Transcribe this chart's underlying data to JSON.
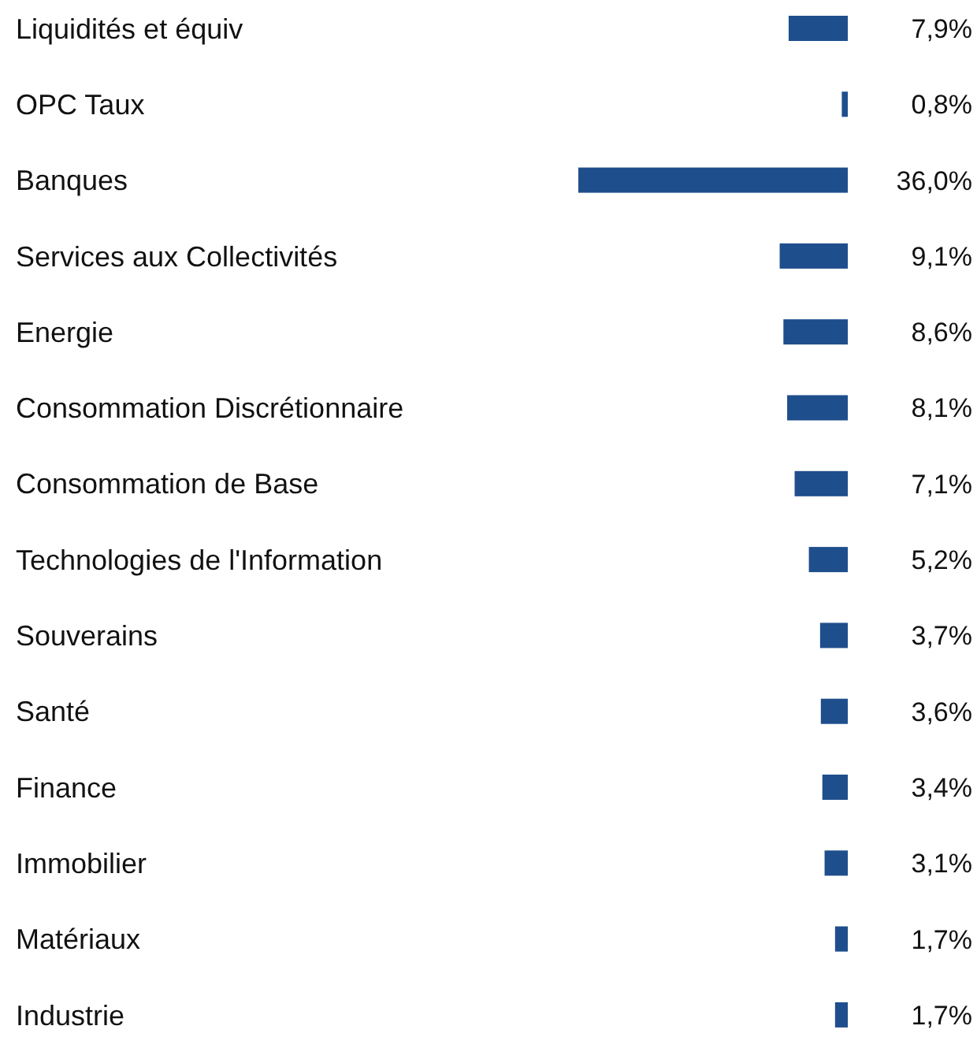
{
  "chart_data": {
    "type": "bar",
    "orientation": "horizontal",
    "color": "#1f4e8c",
    "value_labels": [
      "7,9%",
      "0,8%",
      "36,0%",
      "9,1%",
      "8,6%",
      "8,1%",
      "7,1%",
      "5,2%",
      "3,7%",
      "3,6%",
      "3,4%",
      "3,1%",
      "1,7%",
      "1,7%"
    ],
    "categories": [
      "Liquidités et équiv",
      "OPC Taux",
      "Banques",
      "Services aux Collectivités",
      "Energie",
      "Consommation Discrétionnaire",
      "Consommation de Base",
      "Technologies de l'Information",
      "Souverains",
      "Santé",
      "Finance",
      "Immobilier",
      "Matériaux",
      "Industrie"
    ],
    "values": [
      7.9,
      0.8,
      36.0,
      9.1,
      8.6,
      8.1,
      7.1,
      5.2,
      3.7,
      3.6,
      3.4,
      3.1,
      1.7,
      1.7
    ]
  }
}
